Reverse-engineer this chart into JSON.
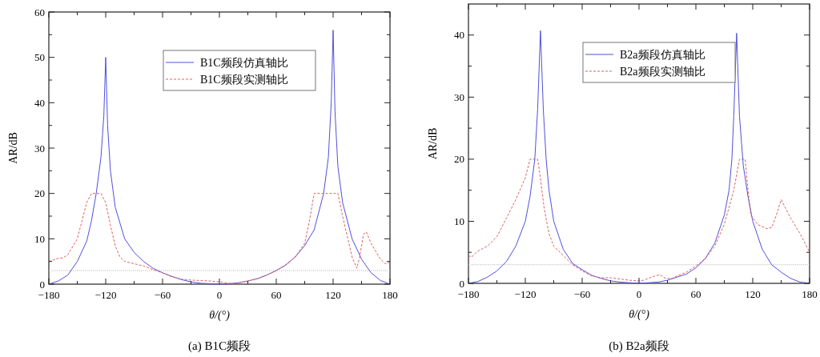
{
  "chart_data": [
    {
      "type": "line",
      "xlabel": "θ/(°)",
      "ylabel": "AR/dB",
      "annotations": [
        "(a) B1C频段"
      ],
      "legend": "top",
      "xlim": [
        -180,
        180
      ],
      "ylim": [
        0,
        60
      ],
      "xticks": [
        -180,
        {
          "value": -150,
          "label": null
        },
        -120,
        {
          "value": -90,
          "label": null
        },
        -60,
        {
          "value": -30,
          "label": null
        },
        0,
        {
          "value": 30,
          "label": null
        },
        60,
        {
          "value": 90,
          "label": null
        },
        120,
        {
          "value": 150,
          "label": null
        },
        180
      ],
      "yticks": [
        0,
        {
          "value": 5,
          "label": null
        },
        10,
        {
          "value": 15,
          "label": null
        },
        20,
        {
          "value": 25,
          "label": null
        },
        30,
        {
          "value": 35,
          "label": null
        },
        40,
        {
          "value": 45,
          "label": null
        },
        50,
        {
          "value": 55,
          "label": null
        },
        60
      ],
      "ref_lines": [
        {
          "axis": "y",
          "value": 3,
          "color": "#aaaaaa",
          "line_style": "dotted"
        }
      ],
      "series": [
        {
          "name": "B1C频段仿真轴比",
          "color": "#5050dd",
          "line_style": "solid",
          "x": [
            -180,
            -170,
            -160,
            -150,
            -140,
            -135,
            -130,
            -125,
            -122,
            -120,
            -118,
            -115,
            -110,
            -100,
            -90,
            -80,
            -70,
            -60,
            -50,
            -40,
            -30,
            -20,
            -10,
            0,
            10,
            20,
            30,
            40,
            50,
            60,
            70,
            80,
            90,
            100,
            110,
            115,
            118,
            120,
            122,
            125,
            130,
            140,
            150,
            160,
            170,
            180
          ],
          "values": [
            0,
            0.7,
            2,
            5,
            9.5,
            14,
            20,
            28,
            37,
            50,
            35,
            25,
            17,
            10,
            7,
            5,
            3.5,
            2.5,
            1.7,
            1,
            0.5,
            0.2,
            0.1,
            0,
            0.1,
            0.3,
            0.7,
            1.2,
            2,
            3,
            4.2,
            6,
            8.5,
            12,
            20,
            28,
            40,
            56,
            38,
            26,
            18,
            10,
            5.5,
            2.5,
            0.8,
            0
          ]
        },
        {
          "name": "B1C频段实测轴比",
          "color": "#e06060",
          "line_style": "dashed",
          "x": [
            -180,
            -170,
            -165,
            -160,
            -150,
            -145,
            -140,
            -135,
            -125,
            -120,
            -115,
            -110,
            -105,
            -100,
            -90,
            -80,
            -70,
            -60,
            -50,
            -40,
            -30,
            -20,
            -10,
            0,
            10,
            15,
            20,
            30,
            40,
            50,
            60,
            70,
            80,
            90,
            95,
            100,
            125,
            130,
            140,
            145,
            148,
            152,
            155,
            160,
            170,
            175,
            180
          ],
          "values": [
            5,
            5.7,
            5.8,
            6.5,
            10,
            14,
            18,
            20,
            20,
            18,
            13,
            8.5,
            6,
            5,
            4.5,
            4,
            3.2,
            2.5,
            1.6,
            1.1,
            0.9,
            0.8,
            0.7,
            0.5,
            0.2,
            0.1,
            0.3,
            0.7,
            1.2,
            2,
            3,
            4.3,
            6,
            9,
            14,
            20,
            20,
            15,
            6,
            3.5,
            6,
            11,
            11.5,
            9,
            5.5,
            4.5,
            4.8
          ]
        }
      ]
    },
    {
      "type": "line",
      "xlabel": "θ/(°)",
      "ylabel": "AR/dB",
      "annotations": [
        "(b) B2a频段"
      ],
      "legend": "top",
      "xlim": [
        -180,
        180
      ],
      "ylim": [
        0,
        45
      ],
      "xticks": [
        -180,
        {
          "value": -150,
          "label": null
        },
        -120,
        {
          "value": -90,
          "label": null
        },
        -60,
        {
          "value": -30,
          "label": null
        },
        0,
        {
          "value": 30,
          "label": null
        },
        60,
        {
          "value": 90,
          "label": null
        },
        120,
        {
          "value": 150,
          "label": null
        },
        180
      ],
      "yticks": [
        0,
        {
          "value": 5,
          "label": null
        },
        10,
        {
          "value": 15,
          "label": null
        },
        20,
        {
          "value": 25,
          "label": null
        },
        30,
        {
          "value": 35,
          "label": null
        },
        40
      ],
      "ref_lines": [
        {
          "axis": "y",
          "value": 3,
          "color": "#aaaaaa",
          "line_style": "dotted"
        }
      ],
      "series": [
        {
          "name": "B2a频段仿真轴比",
          "color": "#5050dd",
          "line_style": "solid",
          "x": [
            -180,
            -170,
            -160,
            -150,
            -140,
            -130,
            -120,
            -115,
            -110,
            -107,
            -104,
            -101,
            -98,
            -95,
            -90,
            -80,
            -70,
            -60,
            -50,
            -40,
            -30,
            -20,
            -10,
            0,
            10,
            20,
            30,
            40,
            50,
            60,
            70,
            80,
            90,
            95,
            98,
            100,
            103,
            106,
            110,
            115,
            120,
            130,
            140,
            150,
            160,
            170,
            180
          ],
          "values": [
            0,
            0.3,
            1,
            2,
            3.5,
            6,
            10,
            14,
            20,
            28,
            40.7,
            28,
            20,
            15,
            10,
            5.5,
            3.2,
            2.2,
            1.3,
            0.8,
            0.4,
            0.2,
            0.1,
            0,
            0.1,
            0.2,
            0.5,
            1,
            1.5,
            2.5,
            4,
            6.5,
            11,
            15,
            20,
            27,
            40.3,
            27,
            19,
            14,
            10,
            5.5,
            3,
            1.8,
            0.8,
            0.2,
            0
          ]
        },
        {
          "name": "B2a频段实测轴比",
          "color": "#e06060",
          "line_style": "dashed",
          "x": [
            -180,
            -177,
            -170,
            -160,
            -150,
            -140,
            -130,
            -120,
            -115,
            -107,
            -105,
            -100,
            -95,
            -90,
            -80,
            -70,
            -60,
            -50,
            -40,
            -30,
            -20,
            -10,
            0,
            5,
            15,
            22,
            28,
            35,
            40,
            50,
            60,
            70,
            80,
            90,
            100,
            106,
            112,
            115,
            118,
            125,
            135,
            140,
            145,
            150,
            155,
            160,
            170,
            175,
            180
          ],
          "values": [
            4.5,
            4.2,
            5.2,
            6,
            7.5,
            10.5,
            13.5,
            17,
            20,
            20,
            18,
            12,
            8,
            6,
            4.5,
            3,
            2,
            1.2,
            0.9,
            0.9,
            0.7,
            0.5,
            0.4,
            0.5,
            1.1,
            1.4,
            0.8,
            0.8,
            1.2,
            1.8,
            2.8,
            4,
            6,
            9.5,
            15,
            20,
            20,
            15,
            11,
            9.5,
            8.8,
            9,
            11,
            13.5,
            12,
            10.5,
            8,
            6.5,
            5
          ]
        }
      ]
    }
  ]
}
